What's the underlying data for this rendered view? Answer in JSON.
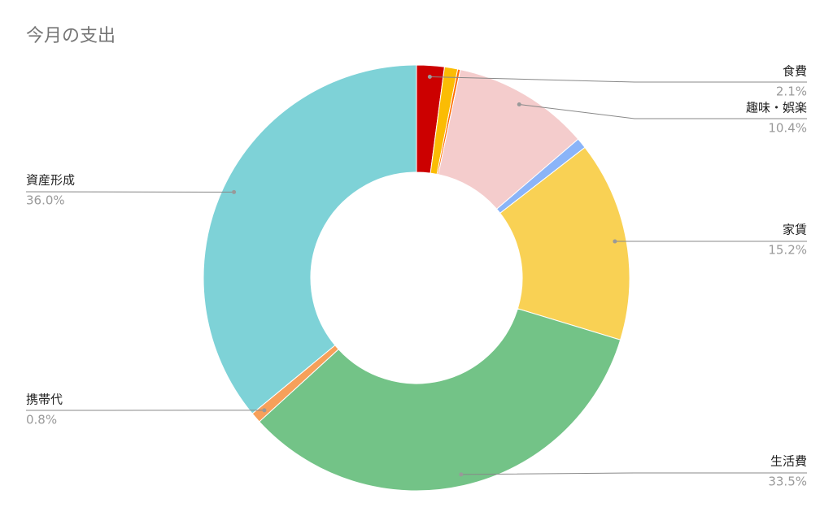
{
  "chart_data": {
    "type": "donut",
    "title": "今月の支出",
    "categories": [
      "食費",
      null,
      null,
      "趣味・娯楽",
      null,
      "家賃",
      "生活費",
      "携帯代",
      "資産形成"
    ],
    "values": [
      2.1,
      1.0,
      0.2,
      10.4,
      0.8,
      15.2,
      33.5,
      0.8,
      36.0
    ],
    "value_labels": [
      "2.1%",
      null,
      null,
      "10.4%",
      null,
      "15.2%",
      "33.5%",
      "0.8%",
      "36.0%"
    ],
    "colors": [
      "#cc0000",
      "#fbbc04",
      "#ff6d01",
      "#f4cccc",
      "#8ab4f8",
      "#f9d154",
      "#73c387",
      "#f6a05a",
      "#7ed2d7"
    ]
  }
}
